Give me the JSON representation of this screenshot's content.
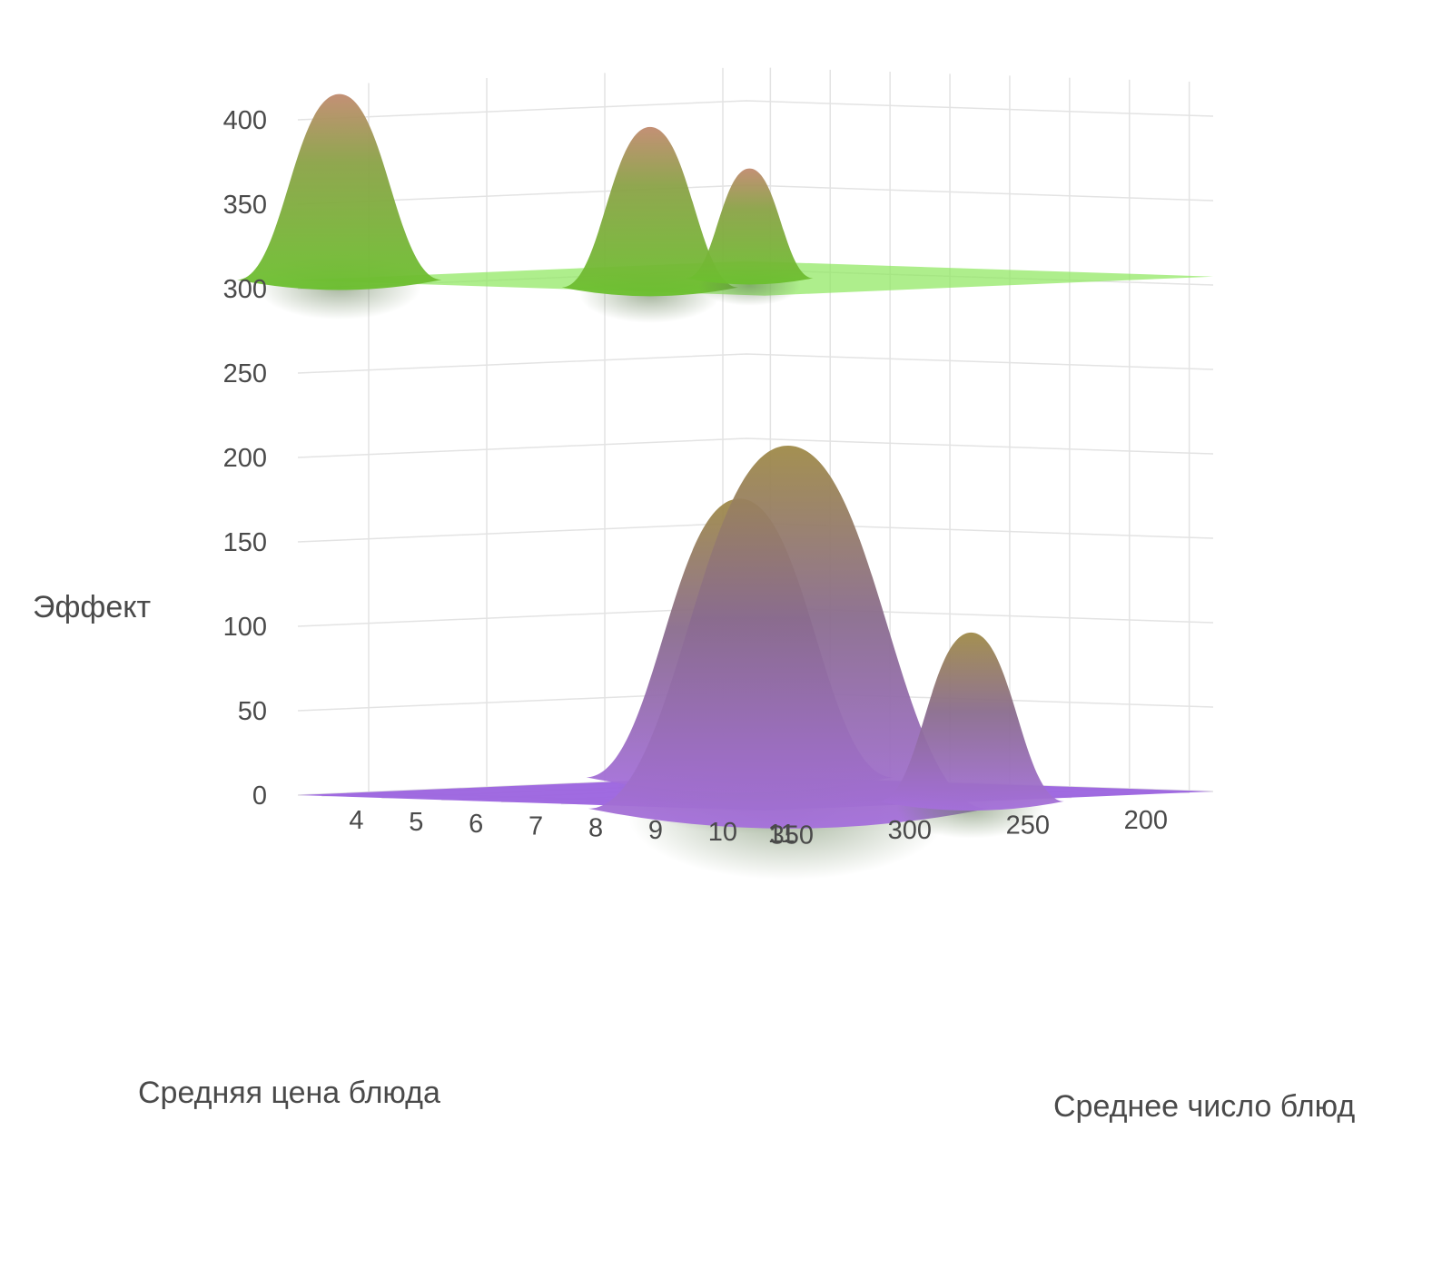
{
  "chart_data": {
    "type": "surface3d",
    "axes": {
      "x": {
        "title": "Средняя цена блюда",
        "ticks": [
          "200",
          "250",
          "300",
          "350"
        ],
        "range": [
          190,
          380
        ]
      },
      "y": {
        "title": "Среднее число блюд",
        "ticks": [
          "4",
          "5",
          "6",
          "7",
          "8",
          "9",
          "10",
          "11"
        ],
        "range": [
          3.6,
          11.4
        ]
      },
      "z": {
        "title": "Эффект",
        "ticks": [
          "0",
          "50",
          "100",
          "150",
          "200",
          "250",
          "300",
          "350",
          "400"
        ],
        "range": [
          0,
          420
        ]
      }
    },
    "grid": true,
    "series": [
      {
        "color": "#8fe860",
        "base_level": 305,
        "peaks": [
          {
            "price": 370,
            "dishes": 3.9,
            "height": 415
          },
          {
            "price": 355,
            "dishes": 8.5,
            "height": 400
          },
          {
            "price": 285,
            "dishes": 7.4,
            "height": 370
          }
        ]
      },
      {
        "color": "#9b63df",
        "base_level": 0,
        "peaks": [
          {
            "price": 198,
            "dishes": 3.8,
            "height": 165
          },
          {
            "price": 365,
            "dishes": 11.2,
            "height": 215
          },
          {
            "price": 290,
            "dishes": 11.3,
            "height": 100
          }
        ]
      }
    ]
  }
}
